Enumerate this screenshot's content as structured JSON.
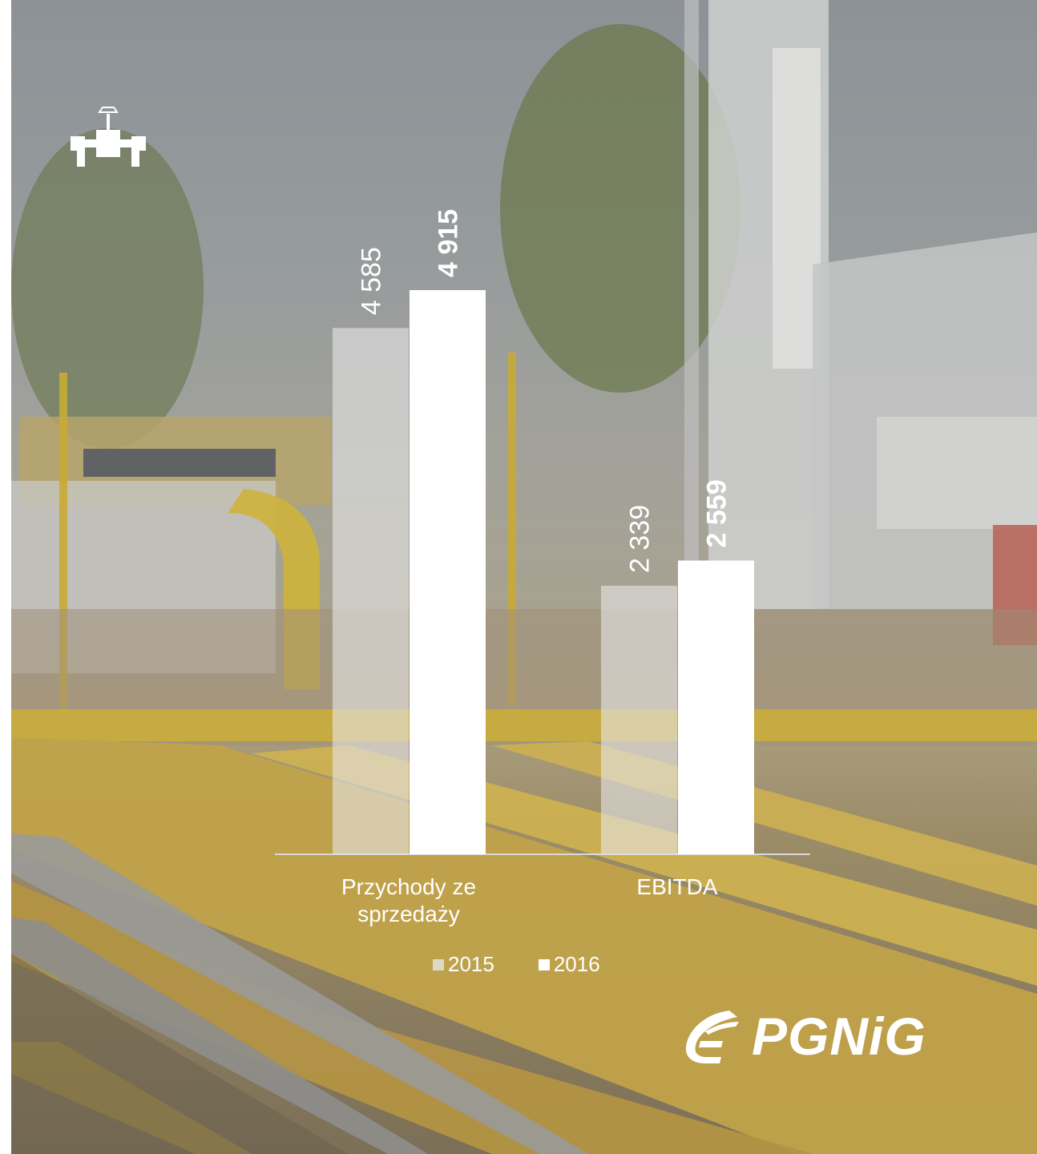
{
  "chart_data": {
    "type": "bar",
    "categories": [
      "Przychody ze sprzedaży",
      "EBITDA"
    ],
    "series": [
      {
        "name": "2015",
        "values": [
          4585,
          2339
        ],
        "labels": [
          "4 585",
          "2 339"
        ],
        "color": "#e6e6e6"
      },
      {
        "name": "2016",
        "values": [
          4915,
          2559
        ],
        "labels": [
          "4 915",
          "2 559"
        ],
        "color": "#ffffff"
      }
    ],
    "ylim": [
      0,
      4915
    ],
    "legend": "bottom",
    "grid": false
  },
  "legend": {
    "item_2015": "2015",
    "item_2016": "2016"
  },
  "category_labels": {
    "cat_0_line1": "Przychody ze",
    "cat_0_line2": "sprzedaży",
    "cat_1": "EBITDA"
  },
  "logo": {
    "text": "PGNiG"
  },
  "icons": {
    "top_left": "valve-icon",
    "logo_mark": "flame-icon"
  }
}
